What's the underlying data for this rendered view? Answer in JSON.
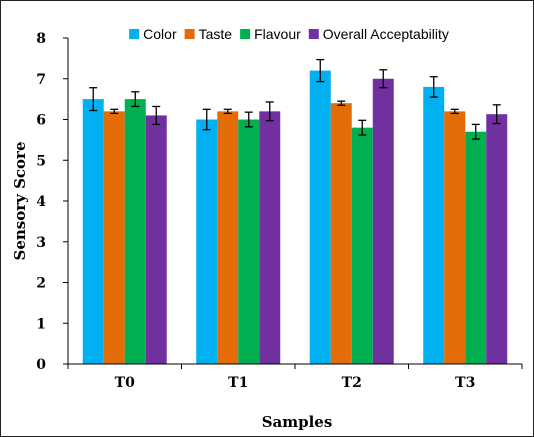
{
  "chart_data": {
    "type": "bar",
    "title": "",
    "xlabel": "Samples",
    "ylabel": "Sensory Score",
    "ylim": [
      0,
      8
    ],
    "yticks": [
      0,
      1,
      2,
      3,
      4,
      5,
      6,
      7,
      8
    ],
    "categories": [
      "T0",
      "T1",
      "T2",
      "T3"
    ],
    "legend_position": "top",
    "grid": false,
    "series": [
      {
        "name": "Color",
        "color": "#00b0f0",
        "values": [
          6.5,
          6.0,
          7.2,
          6.8
        ],
        "errors": [
          0.28,
          0.25,
          0.27,
          0.25
        ]
      },
      {
        "name": "Taste",
        "color": "#e36c09",
        "values": [
          6.2,
          6.2,
          6.4,
          6.2
        ],
        "errors": [
          0.05,
          0.05,
          0.05,
          0.05
        ]
      },
      {
        "name": "Flavour",
        "color": "#00b050",
        "values": [
          6.5,
          6.0,
          5.8,
          5.7
        ],
        "errors": [
          0.18,
          0.18,
          0.18,
          0.18
        ]
      },
      {
        "name": "Overall Acceptability",
        "color": "#7030a0",
        "values": [
          6.1,
          6.2,
          7.0,
          6.13
        ],
        "errors": [
          0.22,
          0.23,
          0.22,
          0.23
        ]
      }
    ]
  }
}
